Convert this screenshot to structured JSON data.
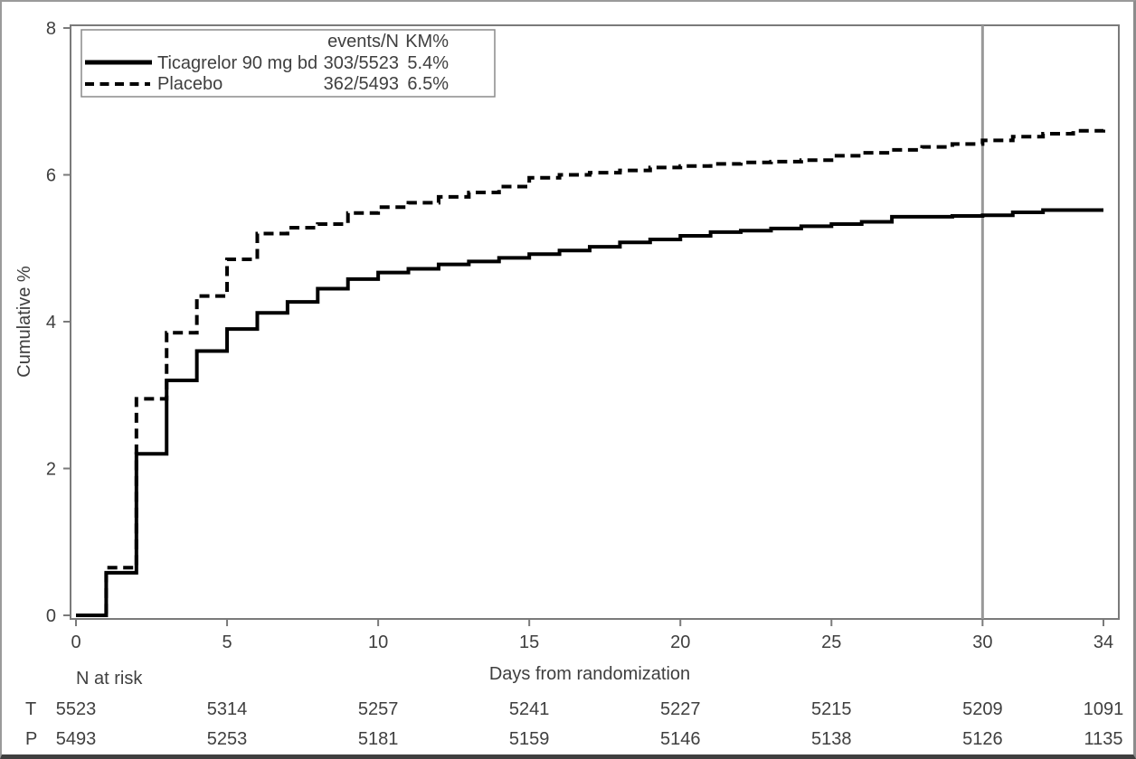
{
  "colors": {
    "curve": "#000000",
    "axis": "#7a7a7a",
    "reference_line": "#999999",
    "text": "#3f3f3f",
    "frame_border": "#9a9a9a",
    "bottom_border": "#3f3f3f",
    "background": "#ffffff"
  },
  "figure": {
    "y_axis": {
      "label": "Cumulative %"
    },
    "x_axis": {
      "label": "Days from randomization"
    },
    "legend": {
      "col_events": "events/N",
      "col_km": "KM%",
      "rows": [
        {
          "label": "Ticagrelor 90 mg bd",
          "events": "303/5523",
          "km": "5.4%",
          "line": "solid"
        },
        {
          "label": "Placebo",
          "events": "362/5493",
          "km": "6.5%",
          "line": "dashed"
        }
      ]
    },
    "risk_table": {
      "title": "N at risk",
      "rows": [
        {
          "label": "T",
          "counts": [
            5523,
            5314,
            5257,
            5241,
            5227,
            5215,
            5209,
            1091
          ]
        },
        {
          "label": "P",
          "counts": [
            5493,
            5253,
            5181,
            5159,
            5146,
            5138,
            5126,
            1135
          ]
        }
      ]
    }
  },
  "chart_data": {
    "type": "line",
    "subtype": "kaplan-meier-step",
    "title": "",
    "xlabel": "Days from randomization",
    "ylabel": "Cumulative %",
    "xlim": [
      0,
      34
    ],
    "ylim": [
      0,
      8
    ],
    "x_ticks": [
      0,
      5,
      10,
      15,
      20,
      25,
      30,
      34
    ],
    "y_ticks": [
      0,
      2,
      4,
      6,
      8
    ],
    "grid": false,
    "legend_position": "top-left",
    "reference_line_x": 30,
    "x": [
      0,
      1,
      2,
      3,
      4,
      5,
      6,
      7,
      8,
      9,
      10,
      11,
      12,
      13,
      14,
      15,
      16,
      17,
      18,
      19,
      20,
      21,
      22,
      23,
      24,
      25,
      26,
      27,
      28,
      29,
      30,
      31,
      32,
      33,
      34
    ],
    "series": [
      {
        "name": "Ticagrelor 90 mg bd",
        "line": "solid",
        "events_n": "303/5523",
        "km_pct": 5.4,
        "values": [
          0,
          0.58,
          2.2,
          3.2,
          3.6,
          3.9,
          4.12,
          4.27,
          4.45,
          4.58,
          4.67,
          4.72,
          4.78,
          4.82,
          4.87,
          4.92,
          4.97,
          5.02,
          5.08,
          5.12,
          5.17,
          5.22,
          5.24,
          5.27,
          5.3,
          5.33,
          5.36,
          5.43,
          5.43,
          5.44,
          5.45,
          5.49,
          5.52,
          5.52,
          5.52
        ]
      },
      {
        "name": "Placebo",
        "line": "dashed",
        "events_n": "362/5493",
        "km_pct": 6.5,
        "values": [
          0,
          0.65,
          2.95,
          3.85,
          4.35,
          4.85,
          5.2,
          5.28,
          5.33,
          5.48,
          5.56,
          5.62,
          5.7,
          5.76,
          5.84,
          5.96,
          6.0,
          6.03,
          6.06,
          6.1,
          6.12,
          6.15,
          6.17,
          6.18,
          6.2,
          6.26,
          6.3,
          6.34,
          6.38,
          6.42,
          6.47,
          6.52,
          6.56,
          6.6,
          6.65
        ]
      }
    ]
  }
}
